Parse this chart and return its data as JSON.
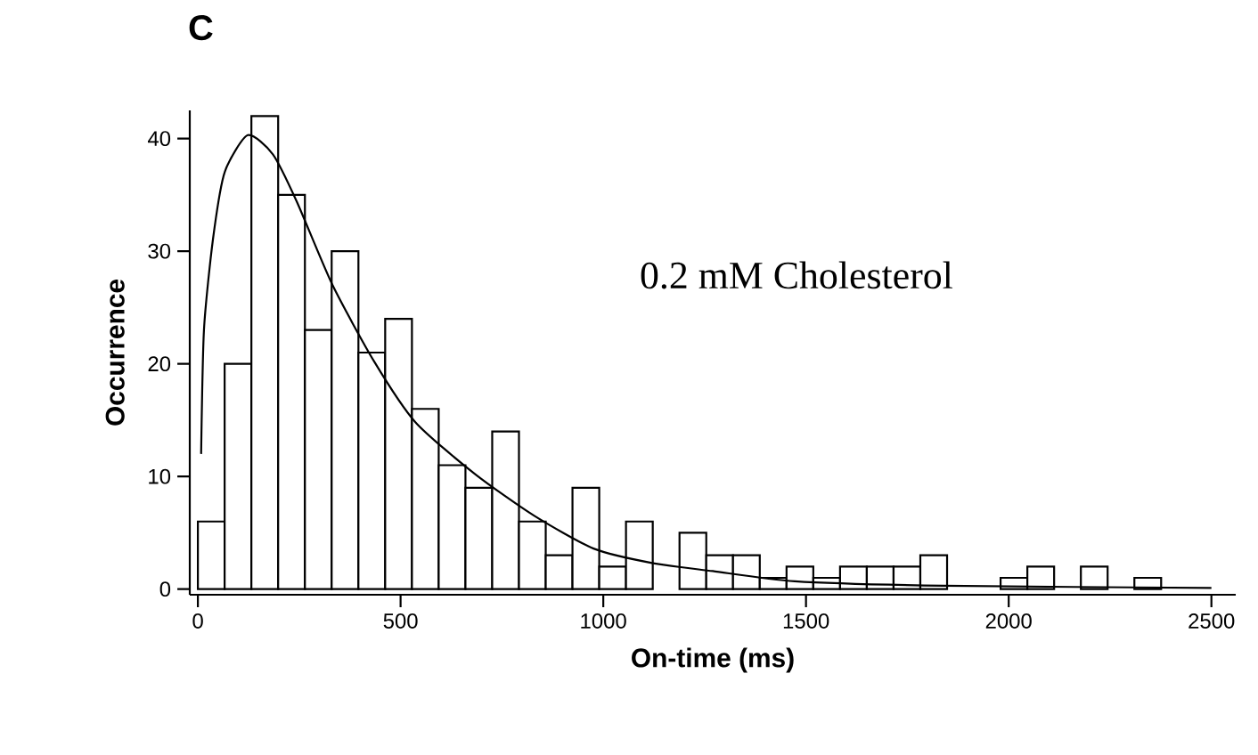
{
  "chart_data": {
    "type": "histogram",
    "title": "C",
    "xlabel": "On-time (ms)",
    "ylabel": "Occurrence",
    "annotations": [
      "0.2 mM Cholesterol"
    ],
    "xlim": [
      -20,
      2560
    ],
    "ylim": [
      -0.5,
      42.5
    ],
    "xticks": [
      0,
      500,
      1000,
      1500,
      2000,
      2500
    ],
    "yticks": [
      0,
      10,
      20,
      30,
      40
    ],
    "grid": false,
    "series": [
      {
        "color": "#ffffff",
        "bins": [
          0,
          66,
          132,
          198,
          264,
          330,
          396,
          462,
          528,
          594,
          660,
          726,
          792,
          858,
          924,
          990,
          1056,
          1122,
          1188,
          1254,
          1320,
          1386,
          1452,
          1518,
          1584,
          1650,
          1716,
          1782,
          1848,
          1914,
          1980,
          2046,
          2112,
          2178,
          2244,
          2310,
          2376
        ],
        "values": [
          6,
          20,
          42,
          35,
          23,
          30,
          21,
          24,
          16,
          11,
          9,
          14,
          6,
          3,
          9,
          2,
          6,
          0,
          5,
          3,
          3,
          1,
          2,
          1,
          2,
          2,
          2,
          3,
          0,
          0,
          1,
          2,
          0,
          2,
          0,
          1
        ]
      },
      {
        "type": "line",
        "color": "#000000",
        "x": [
          8,
          15,
          37,
          66,
          123,
          185,
          244,
          332,
          435,
          537,
          684,
          830,
          976,
          1123,
          1270,
          1472,
          1840,
          2500
        ],
        "values": [
          12,
          23,
          31,
          37,
          40.3,
          38.6,
          34.4,
          27,
          20.2,
          14.8,
          10.2,
          6.5,
          3.6,
          2.3,
          1.6,
          0.7,
          0.3,
          0.1
        ]
      }
    ]
  }
}
